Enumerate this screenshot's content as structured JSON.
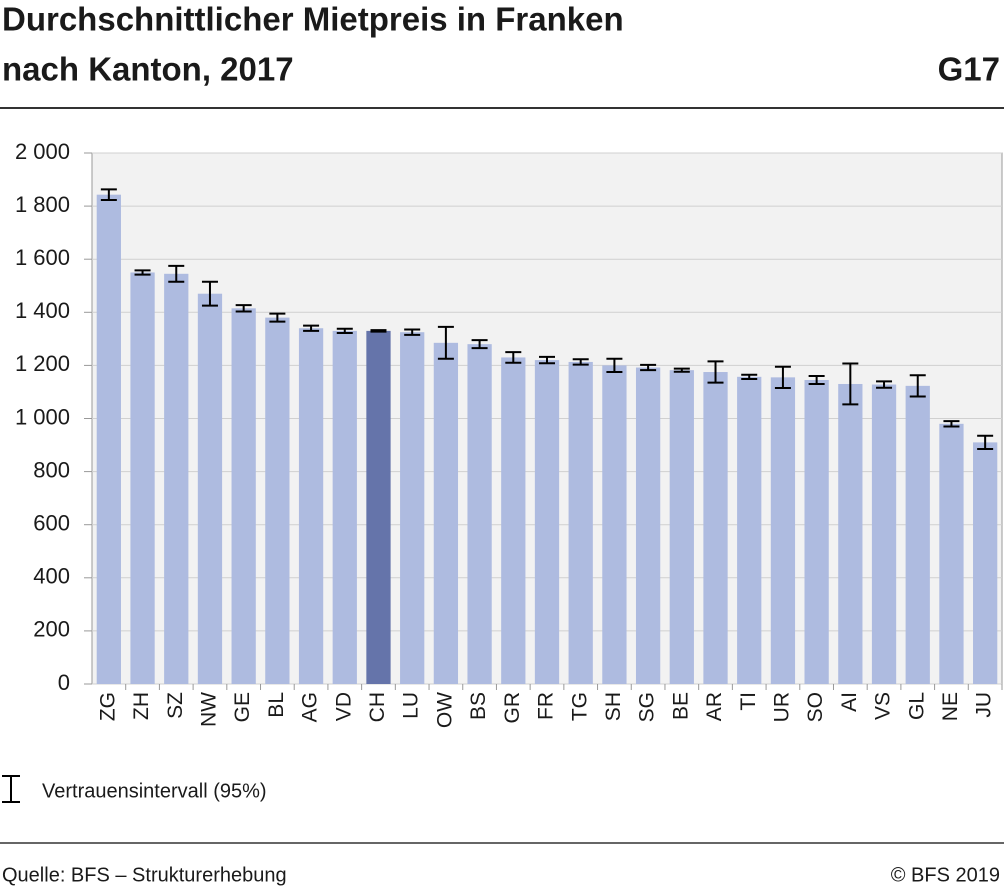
{
  "chart_data": {
    "type": "bar",
    "title": [
      "Durchschnittlicher Mietpreis in Franken",
      "nach Kanton, 2017"
    ],
    "chart_id": "G17",
    "categories": [
      "ZG",
      "ZH",
      "SZ",
      "NW",
      "GE",
      "BL",
      "AG",
      "VD",
      "CH",
      "LU",
      "OW",
      "BS",
      "GR",
      "FR",
      "TG",
      "SH",
      "SG",
      "BE",
      "AR",
      "TI",
      "UR",
      "SO",
      "AI",
      "VS",
      "GL",
      "NE",
      "JU"
    ],
    "values": [
      1843,
      1550,
      1545,
      1470,
      1415,
      1380,
      1340,
      1330,
      1330,
      1325,
      1285,
      1280,
      1230,
      1220,
      1213,
      1200,
      1192,
      1182,
      1175,
      1157,
      1155,
      1145,
      1130,
      1128,
      1123,
      980,
      910
    ],
    "errors": [
      20,
      8,
      30,
      45,
      12,
      15,
      10,
      8,
      3,
      10,
      60,
      15,
      20,
      12,
      10,
      25,
      10,
      6,
      40,
      8,
      40,
      15,
      77,
      12,
      40,
      10,
      25
    ],
    "color": "#aebbe0",
    "highlight": "CH",
    "highlight_color": "#6574aa",
    "ylim": [
      0,
      2000
    ],
    "yticks": [
      0,
      200,
      400,
      600,
      800,
      {
        "value": 1000,
        "label": "1 000"
      },
      {
        "value": 1200,
        "label": "1 200"
      },
      {
        "value": 1400,
        "label": "1 400"
      },
      {
        "value": 1600,
        "label": "1 600"
      },
      {
        "value": 1800,
        "label": "1 800"
      },
      {
        "value": 2000,
        "label": "2 000"
      }
    ],
    "grid": true,
    "legend_label": "Vertrauensintervall (95%)",
    "source": "Quelle: BFS – Strukturerhebung",
    "copyright": "© BFS 2019"
  }
}
